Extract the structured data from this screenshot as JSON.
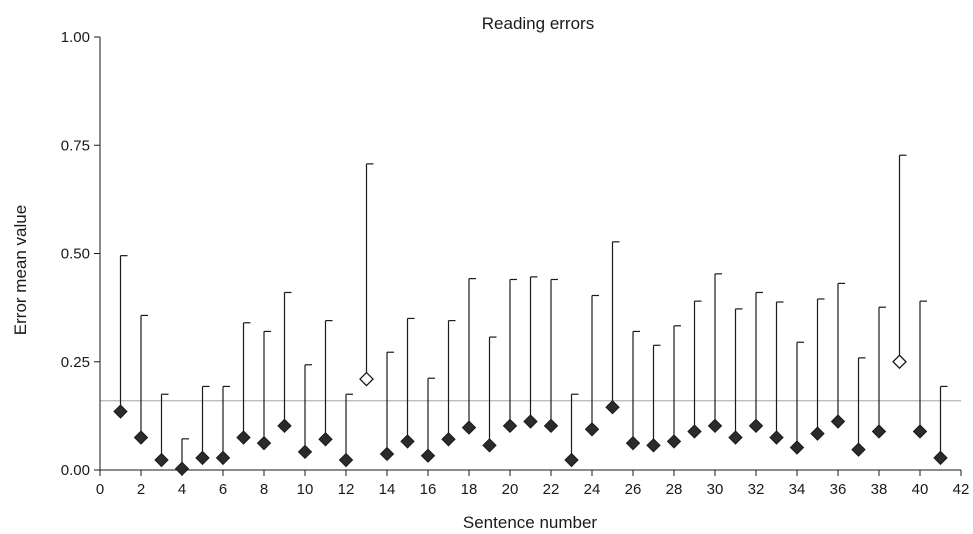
{
  "chart_data": {
    "type": "scatter",
    "title": "Reading errors",
    "xlabel": "Sentence number",
    "ylabel": "Error mean value",
    "xlim": [
      0,
      42
    ],
    "ylim": [
      0,
      1
    ],
    "x_ticks": [
      "0",
      "2",
      "4",
      "6",
      "8",
      "10",
      "12",
      "14",
      "16",
      "18",
      "20",
      "22",
      "24",
      "26",
      "28",
      "30",
      "32",
      "34",
      "36",
      "38",
      "40",
      "42"
    ],
    "y_ticks": [
      "0.00",
      "0.25",
      "0.50",
      "0.75",
      "1.00"
    ],
    "reference_line": 0.16,
    "grid": false,
    "legend": "none",
    "marker_style": "diamond, filled dark; sentences 13 and 39 drawn as open diamonds",
    "points": [
      {
        "x": 1,
        "mean": 0.135,
        "upper": 0.495
      },
      {
        "x": 2,
        "mean": 0.075,
        "upper": 0.357
      },
      {
        "x": 3,
        "mean": 0.023,
        "upper": 0.175
      },
      {
        "x": 4,
        "mean": 0.003,
        "upper": 0.072
      },
      {
        "x": 5,
        "mean": 0.028,
        "upper": 0.193
      },
      {
        "x": 6,
        "mean": 0.028,
        "upper": 0.193
      },
      {
        "x": 7,
        "mean": 0.075,
        "upper": 0.34
      },
      {
        "x": 8,
        "mean": 0.062,
        "upper": 0.32
      },
      {
        "x": 9,
        "mean": 0.102,
        "upper": 0.41
      },
      {
        "x": 10,
        "mean": 0.042,
        "upper": 0.243
      },
      {
        "x": 11,
        "mean": 0.071,
        "upper": 0.345
      },
      {
        "x": 12,
        "mean": 0.023,
        "upper": 0.175
      },
      {
        "x": 13,
        "mean": 0.21,
        "upper": 0.707,
        "open": true
      },
      {
        "x": 14,
        "mean": 0.037,
        "upper": 0.272
      },
      {
        "x": 15,
        "mean": 0.066,
        "upper": 0.35
      },
      {
        "x": 16,
        "mean": 0.033,
        "upper": 0.212
      },
      {
        "x": 17,
        "mean": 0.071,
        "upper": 0.345
      },
      {
        "x": 18,
        "mean": 0.098,
        "upper": 0.442
      },
      {
        "x": 19,
        "mean": 0.057,
        "upper": 0.307
      },
      {
        "x": 20,
        "mean": 0.102,
        "upper": 0.44
      },
      {
        "x": 21,
        "mean": 0.112,
        "upper": 0.446
      },
      {
        "x": 22,
        "mean": 0.102,
        "upper": 0.44
      },
      {
        "x": 23,
        "mean": 0.023,
        "upper": 0.175
      },
      {
        "x": 24,
        "mean": 0.094,
        "upper": 0.403
      },
      {
        "x": 25,
        "mean": 0.145,
        "upper": 0.527
      },
      {
        "x": 26,
        "mean": 0.062,
        "upper": 0.32
      },
      {
        "x": 27,
        "mean": 0.057,
        "upper": 0.288
      },
      {
        "x": 28,
        "mean": 0.066,
        "upper": 0.333
      },
      {
        "x": 29,
        "mean": 0.089,
        "upper": 0.39
      },
      {
        "x": 30,
        "mean": 0.102,
        "upper": 0.453
      },
      {
        "x": 31,
        "mean": 0.075,
        "upper": 0.372
      },
      {
        "x": 32,
        "mean": 0.102,
        "upper": 0.41
      },
      {
        "x": 33,
        "mean": 0.075,
        "upper": 0.388
      },
      {
        "x": 34,
        "mean": 0.052,
        "upper": 0.295
      },
      {
        "x": 35,
        "mean": 0.084,
        "upper": 0.395
      },
      {
        "x": 36,
        "mean": 0.112,
        "upper": 0.431
      },
      {
        "x": 37,
        "mean": 0.047,
        "upper": 0.259
      },
      {
        "x": 38,
        "mean": 0.089,
        "upper": 0.376
      },
      {
        "x": 39,
        "mean": 0.25,
        "upper": 0.727,
        "open": true
      },
      {
        "x": 40,
        "mean": 0.089,
        "upper": 0.39
      },
      {
        "x": 41,
        "mean": 0.028,
        "upper": 0.193
      }
    ]
  }
}
